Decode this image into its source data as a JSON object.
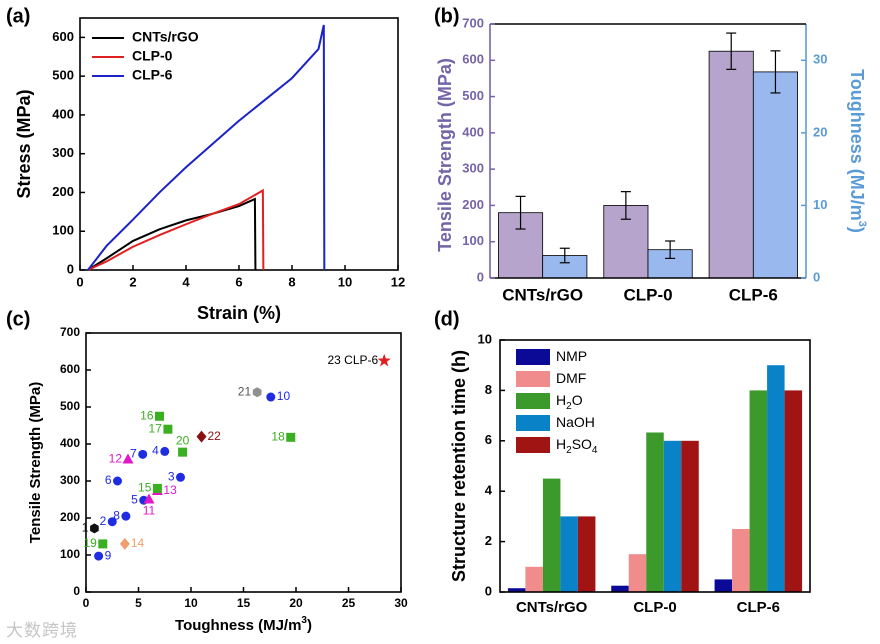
{
  "chart_data": [
    {
      "panel": "(a)",
      "type": "line",
      "xlabel": "Strain (%)",
      "ylabel": "Stress (MPa)",
      "xlim": [
        0,
        12
      ],
      "ylim": [
        0,
        650
      ],
      "xticks": [
        0,
        2,
        4,
        6,
        8,
        10,
        12
      ],
      "yticks": [
        0,
        100,
        200,
        300,
        400,
        500,
        600
      ],
      "legend_position": "top-left",
      "series": [
        {
          "name": "CNTs/rGO",
          "color": "#000000",
          "points": [
            [
              0.3,
              0
            ],
            [
              1,
              30
            ],
            [
              2,
              75
            ],
            [
              3,
              105
            ],
            [
              4,
              128
            ],
            [
              5,
              145
            ],
            [
              6,
              165
            ],
            [
              6.6,
              183
            ],
            [
              6.62,
              0
            ]
          ]
        },
        {
          "name": "CLP-0",
          "color": "#e02020",
          "points": [
            [
              0.3,
              0
            ],
            [
              1,
              22
            ],
            [
              2,
              60
            ],
            [
              3,
              90
            ],
            [
              4,
              118
            ],
            [
              5,
              145
            ],
            [
              6,
              170
            ],
            [
              6.9,
              205
            ],
            [
              6.92,
              0
            ]
          ]
        },
        {
          "name": "CLP-6",
          "color": "#1a22c8",
          "points": [
            [
              0.3,
              0
            ],
            [
              1,
              62
            ],
            [
              2,
              130
            ],
            [
              3,
              200
            ],
            [
              4,
              265
            ],
            [
              5,
              325
            ],
            [
              6,
              385
            ],
            [
              7,
              440
            ],
            [
              8,
              495
            ],
            [
              9,
              570
            ],
            [
              9.2,
              632
            ],
            [
              9.22,
              0
            ]
          ]
        }
      ]
    },
    {
      "panel": "(b)",
      "type": "bar",
      "categories": [
        "CNTs/rGO",
        "CLP-0",
        "CLP-6"
      ],
      "ylabel_left": "Tensile Strength (MPa)",
      "ylabel_right": "Toughness (MJ/m",
      "ylabel_right_sup": "3",
      "ylabel_right_close": ")",
      "ylim_left": [
        0,
        700
      ],
      "ylim_right": [
        0,
        35
      ],
      "yticks_left": [
        0,
        100,
        200,
        300,
        400,
        500,
        600,
        700
      ],
      "yticks_right": [
        0,
        10,
        20,
        30
      ],
      "series": [
        {
          "name": "Tensile Strength",
          "axis": "left",
          "color": "#b6a4cc",
          "values": [
            180,
            200,
            625
          ],
          "errors": [
            45,
            38,
            50
          ]
        },
        {
          "name": "Toughness",
          "axis": "right",
          "color": "#98b8ee",
          "values": [
            3.1,
            3.9,
            28.4
          ],
          "errors": [
            1.0,
            1.2,
            2.9
          ]
        }
      ]
    },
    {
      "panel": "(c)",
      "type": "scatter",
      "xlabel": "Toughness (MJ/m",
      "xlabel_sup": "3",
      "xlabel_close": ")",
      "ylabel": "Tensile Strength (MPa)",
      "xlim": [
        0,
        30
      ],
      "ylim": [
        0,
        700
      ],
      "xticks": [
        0,
        5,
        10,
        15,
        20,
        25,
        30
      ],
      "yticks": [
        0,
        100,
        200,
        300,
        400,
        500,
        600,
        700
      ],
      "points": [
        {
          "label": "1",
          "x": 0.8,
          "y": 172,
          "color": "#111111",
          "shape": "hexagon",
          "label_pos": "left"
        },
        {
          "label": "2",
          "x": 2.5,
          "y": 190,
          "color": "#1f2de0",
          "shape": "circle",
          "label_pos": "left"
        },
        {
          "label": "3",
          "x": 9.0,
          "y": 310,
          "color": "#1f2de0",
          "shape": "circle",
          "label_pos": "left"
        },
        {
          "label": "4",
          "x": 7.5,
          "y": 380,
          "color": "#1f2de0",
          "shape": "circle",
          "label_pos": "left"
        },
        {
          "label": "5",
          "x": 5.5,
          "y": 248,
          "color": "#1f2de0",
          "shape": "circle",
          "label_pos": "left"
        },
        {
          "label": "6",
          "x": 3.0,
          "y": 300,
          "color": "#1f2de0",
          "shape": "circle",
          "label_pos": "left"
        },
        {
          "label": "7",
          "x": 5.4,
          "y": 372,
          "color": "#1f2de0",
          "shape": "circle",
          "label_pos": "left"
        },
        {
          "label": "8",
          "x": 3.8,
          "y": 205,
          "color": "#1f2de0",
          "shape": "circle",
          "label_pos": "left"
        },
        {
          "label": "9",
          "x": 1.2,
          "y": 97,
          "color": "#1f2de0",
          "shape": "circle",
          "label_pos": "right"
        },
        {
          "label": "10",
          "x": 17.6,
          "y": 527,
          "color": "#1f2de0",
          "shape": "circle",
          "label_pos": "right"
        },
        {
          "label": "11",
          "x": 6.0,
          "y": 250,
          "color": "#e018c8",
          "shape": "triangle",
          "label_pos": "below"
        },
        {
          "label": "12",
          "x": 4.0,
          "y": 358,
          "color": "#e018c8",
          "shape": "triangle",
          "label_pos": "left"
        },
        {
          "label": "13",
          "x": 6.8,
          "y": 273,
          "color": "#e018c8",
          "shape": "triangle",
          "label_pos": "right"
        },
        {
          "label": "14",
          "x": 3.7,
          "y": 130,
          "color": "#f0a070",
          "shape": "diamond",
          "label_pos": "right"
        },
        {
          "label": "15",
          "x": 6.8,
          "y": 280,
          "color": "#3ab020",
          "shape": "square",
          "label_pos": "left"
        },
        {
          "label": "16",
          "x": 7.0,
          "y": 475,
          "color": "#3ab020",
          "shape": "square",
          "label_pos": "left"
        },
        {
          "label": "17",
          "x": 7.8,
          "y": 440,
          "color": "#3ab020",
          "shape": "square",
          "label_pos": "left"
        },
        {
          "label": "18",
          "x": 19.5,
          "y": 418,
          "color": "#3ab020",
          "shape": "square",
          "label_pos": "left"
        },
        {
          "label": "19",
          "x": 1.6,
          "y": 130,
          "color": "#3ab020",
          "shape": "square",
          "label_pos": "left"
        },
        {
          "label": "20",
          "x": 9.2,
          "y": 378,
          "color": "#3ab020",
          "shape": "square",
          "label_pos": "above"
        },
        {
          "label": "21",
          "x": 16.3,
          "y": 540,
          "color": "#909090",
          "shape": "hexagon",
          "label_pos": "left"
        },
        {
          "label": "22",
          "x": 11.0,
          "y": 420,
          "color": "#8b1010",
          "shape": "diamond",
          "label_pos": "right"
        },
        {
          "label": "23 CLP-6",
          "x": 28.4,
          "y": 625,
          "color": "#e02020",
          "shape": "star",
          "label_pos": "left"
        }
      ]
    },
    {
      "panel": "(d)",
      "type": "bar",
      "categories": [
        "CNTs/rGO",
        "CLP-0",
        "CLP-6"
      ],
      "ylabel": "Structure retention time (h)",
      "ylim": [
        0,
        10
      ],
      "yticks": [
        0,
        2,
        4,
        6,
        8,
        10
      ],
      "legend_position": "top-left",
      "series": [
        {
          "name": "NMP",
          "sub": "",
          "tail": "",
          "color": "#0a0a96",
          "values": [
            0.15,
            0.25,
            0.5
          ]
        },
        {
          "name": "DMF",
          "sub": "",
          "tail": "",
          "color": "#f08c8c",
          "values": [
            1.0,
            1.5,
            2.5
          ]
        },
        {
          "name": "H",
          "sub": "2",
          "tail": "O",
          "color": "#3c9a2c",
          "values": [
            4.5,
            6.33,
            8.0
          ]
        },
        {
          "name": "NaOH",
          "sub": "",
          "tail": "",
          "color": "#0a82c8",
          "values": [
            3.0,
            6.0,
            9.0
          ]
        },
        {
          "name": "H",
          "sub": "2",
          "tail": "SO4",
          "color": "#a01414",
          "values": [
            3.0,
            6.0,
            8.0
          ]
        }
      ]
    }
  ],
  "watermark": "大数跨境"
}
